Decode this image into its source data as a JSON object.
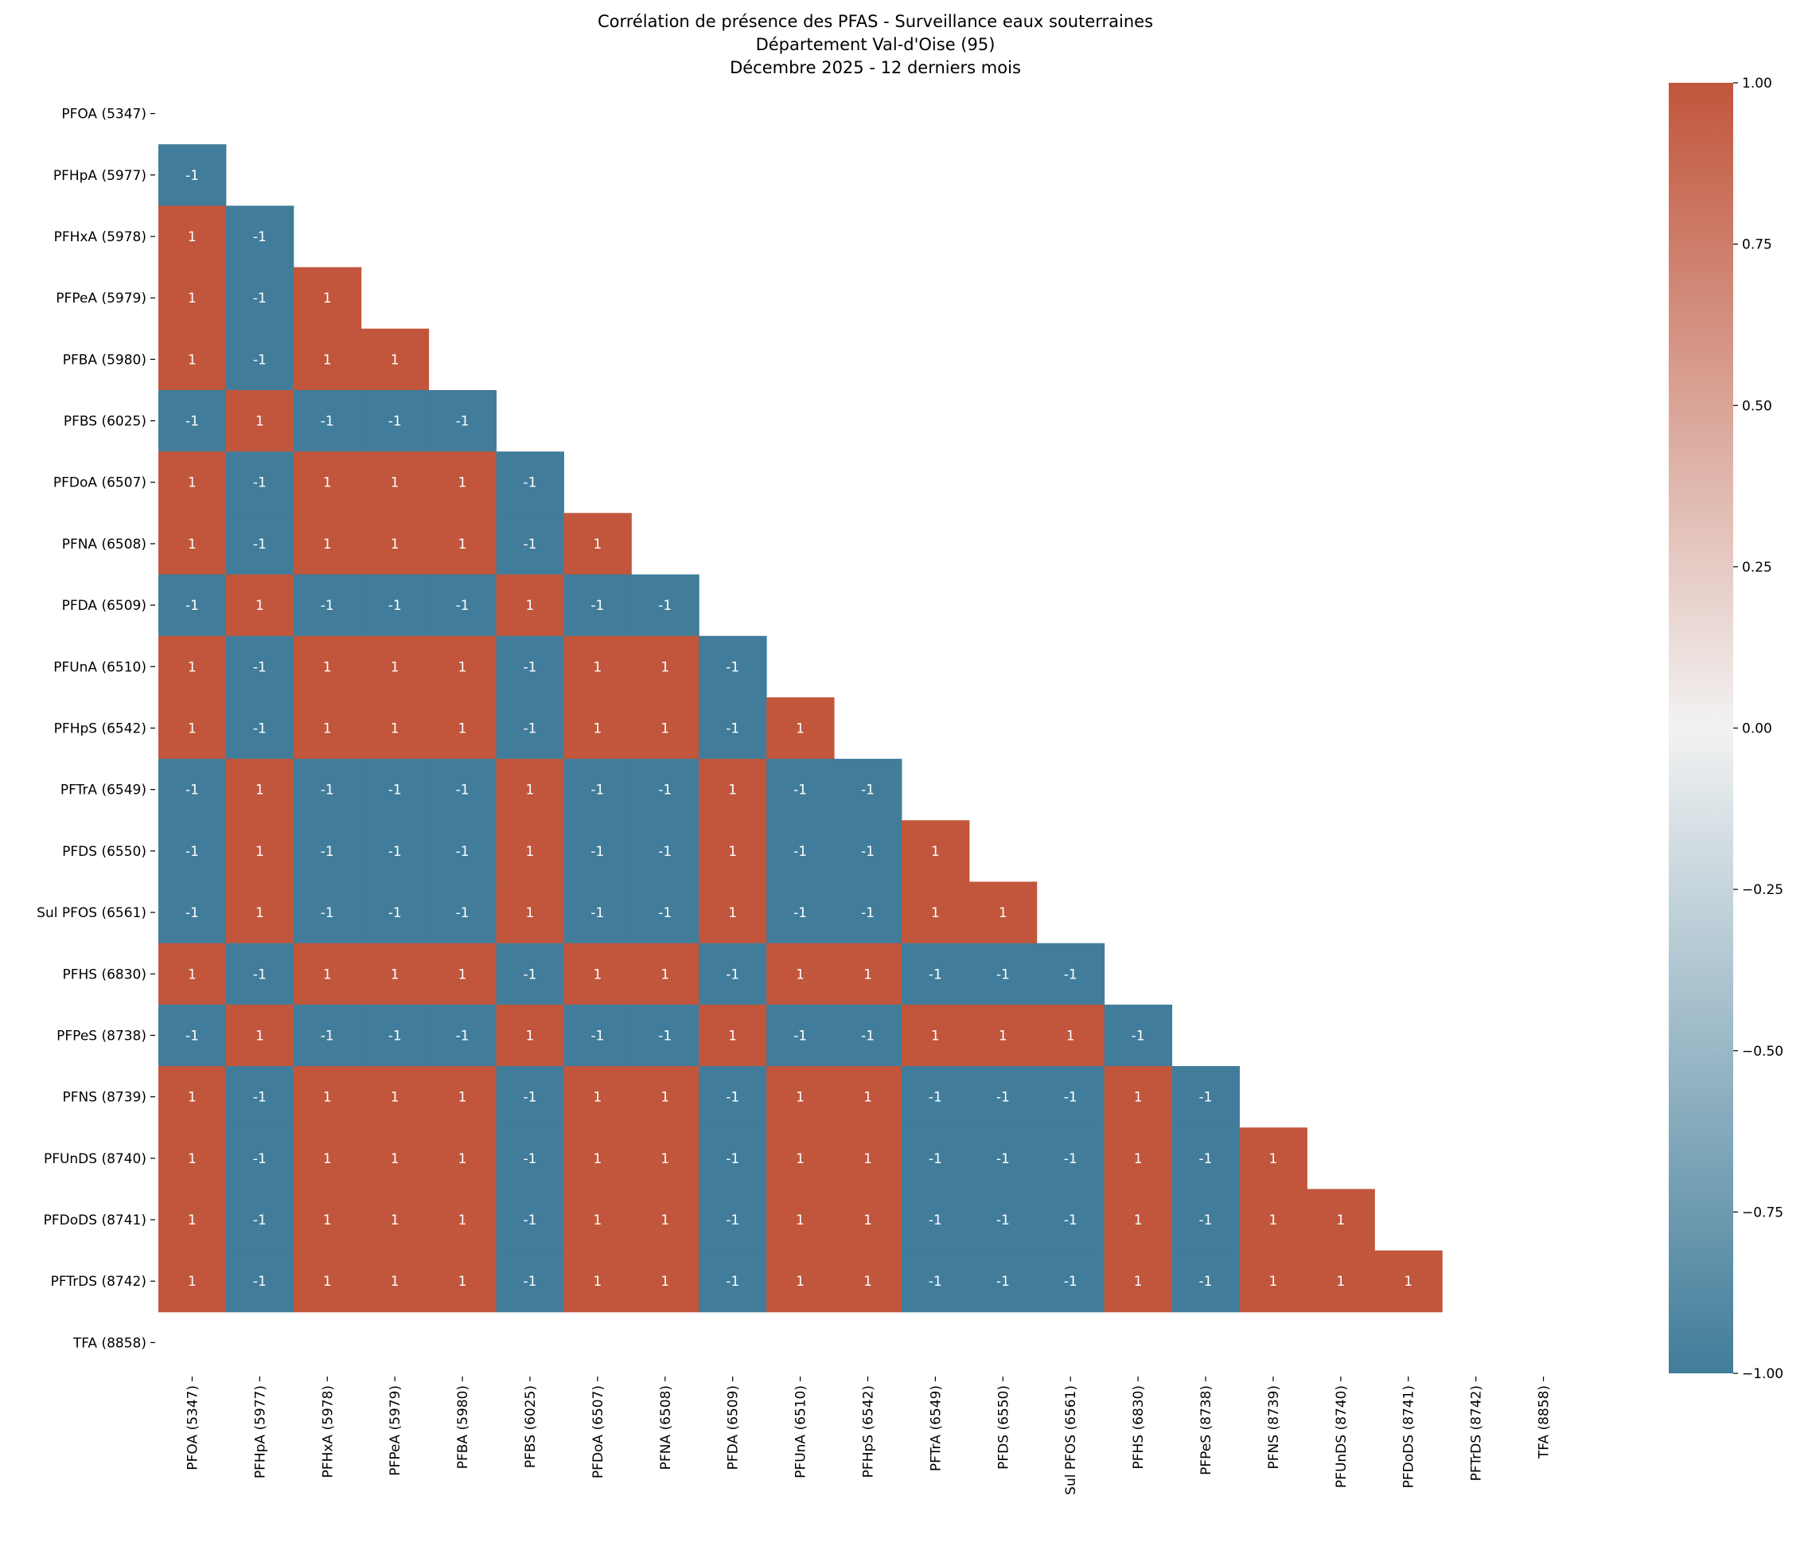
{
  "chart_data": {
    "type": "heatmap",
    "title": [
      "Corrélation de présence des PFAS - Surveillance eaux souterraines",
      "Département Val-d'Oise (95)",
      "Décembre 2025 - 12 derniers mois"
    ],
    "labels": [
      "PFOA (5347)",
      "PFHpA (5977)",
      "PFHxA (5978)",
      "PFPeA (5979)",
      "PFBA (5980)",
      "PFBS (6025)",
      "PFDoA (6507)",
      "PFNA (6508)",
      "PFDA (6509)",
      "PFUnA (6510)",
      "PFHpS (6542)",
      "PFTrA (6549)",
      "PFDS (6550)",
      "Sul PFOS (6561)",
      "PFHS (6830)",
      "PFPeS (8738)",
      "PFNS (8739)",
      "PFUnDS (8740)",
      "PFDoDS (8741)",
      "PFTrDS (8742)",
      "TFA (8858)"
    ],
    "mask": "upper triangle including diagonal",
    "matrix_lower": [
      [],
      [
        -1
      ],
      [
        1,
        -1
      ],
      [
        1,
        -1,
        1
      ],
      [
        1,
        -1,
        1,
        1
      ],
      [
        -1,
        1,
        -1,
        -1,
        -1
      ],
      [
        1,
        -1,
        1,
        1,
        1,
        -1
      ],
      [
        1,
        -1,
        1,
        1,
        1,
        -1,
        1
      ],
      [
        -1,
        1,
        -1,
        -1,
        -1,
        1,
        -1,
        -1
      ],
      [
        1,
        -1,
        1,
        1,
        1,
        -1,
        1,
        1,
        -1
      ],
      [
        1,
        -1,
        1,
        1,
        1,
        -1,
        1,
        1,
        -1,
        1
      ],
      [
        -1,
        1,
        -1,
        -1,
        -1,
        1,
        -1,
        -1,
        1,
        -1,
        -1
      ],
      [
        -1,
        1,
        -1,
        -1,
        -1,
        1,
        -1,
        -1,
        1,
        -1,
        -1,
        1
      ],
      [
        -1,
        1,
        -1,
        -1,
        -1,
        1,
        -1,
        -1,
        1,
        -1,
        -1,
        1,
        1
      ],
      [
        1,
        -1,
        1,
        1,
        1,
        -1,
        1,
        1,
        -1,
        1,
        1,
        -1,
        -1,
        -1
      ],
      [
        -1,
        1,
        -1,
        -1,
        -1,
        1,
        -1,
        -1,
        1,
        -1,
        -1,
        1,
        1,
        1,
        -1
      ],
      [
        1,
        -1,
        1,
        1,
        1,
        -1,
        1,
        1,
        -1,
        1,
        1,
        -1,
        -1,
        -1,
        1,
        -1
      ],
      [
        1,
        -1,
        1,
        1,
        1,
        -1,
        1,
        1,
        -1,
        1,
        1,
        -1,
        -1,
        -1,
        1,
        -1,
        1
      ],
      [
        1,
        -1,
        1,
        1,
        1,
        -1,
        1,
        1,
        -1,
        1,
        1,
        -1,
        -1,
        -1,
        1,
        -1,
        1,
        1
      ],
      [
        1,
        -1,
        1,
        1,
        1,
        -1,
        1,
        1,
        -1,
        1,
        1,
        -1,
        -1,
        -1,
        1,
        -1,
        1,
        1,
        1
      ],
      [
        null,
        null,
        null,
        null,
        null,
        null,
        null,
        null,
        null,
        null,
        null,
        null,
        null,
        null,
        null,
        null,
        null,
        null,
        null,
        null
      ]
    ],
    "colorbar": {
      "range": [
        -1,
        1
      ],
      "ticks": [
        "1.00",
        "0.75",
        "0.50",
        "0.25",
        "0.00",
        "−0.25",
        "−0.50",
        "−0.75",
        "−1.00"
      ]
    },
    "colors": {
      "positive": "#c1563c",
      "neutral": "#f2f2f2",
      "negative": "#417d9a",
      "annotation": "#ffffff"
    }
  }
}
